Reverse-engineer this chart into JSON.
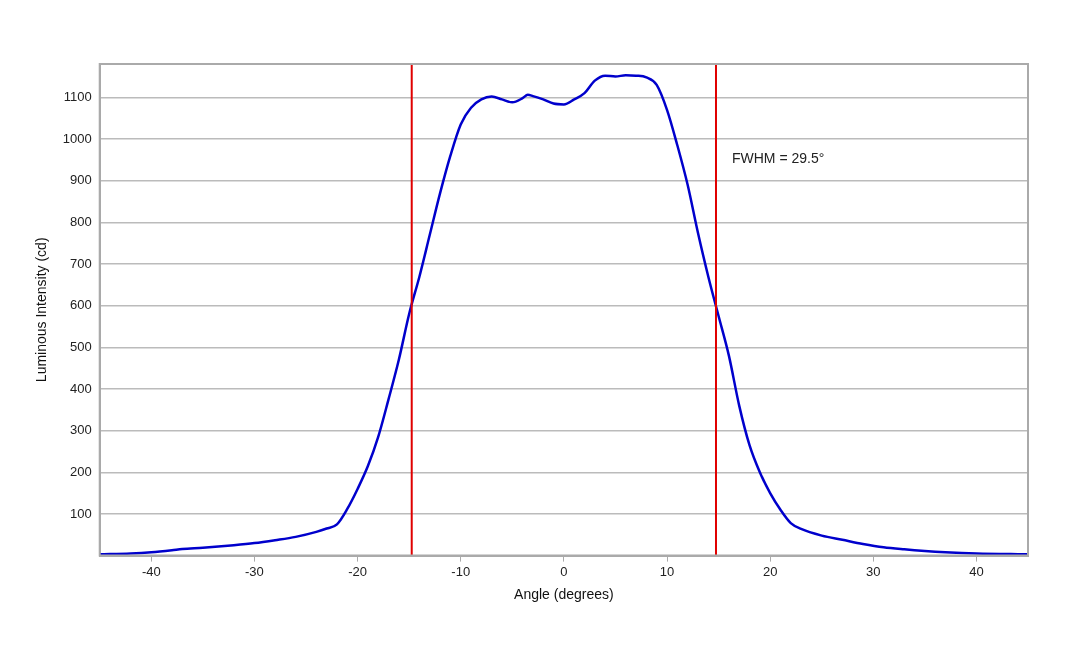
{
  "chart_data": {
    "type": "line",
    "xlabel": "Angle (degrees)",
    "ylabel": "Luminous Intensity (cd)",
    "xlim": [
      -45,
      45
    ],
    "xticks": [
      -40,
      -30,
      -20,
      -10,
      0,
      10,
      20,
      30,
      40
    ],
    "ylim": [
      0,
      1180
    ],
    "yticks": [
      100,
      200,
      300,
      400,
      500,
      600,
      700,
      800,
      900,
      1000,
      1100
    ],
    "grid": "y",
    "legend": false,
    "marker": "none",
    "line_style": "solid",
    "series": [
      {
        "color": "#0000cc",
        "x": [
          -45,
          -42,
          -40,
          -38,
          -37,
          -35,
          -32,
          -30,
          -28,
          -26,
          -24,
          -23,
          -22,
          -21,
          -20,
          -19,
          -18,
          -17,
          -16,
          -15,
          -14,
          -13,
          -12,
          -11,
          -10,
          -9,
          -8,
          -7,
          -6,
          -5,
          -4,
          -3.5,
          -3,
          -2,
          -1,
          0,
          1,
          2,
          3,
          4,
          5,
          6,
          7,
          8,
          9,
          10,
          11,
          12,
          13,
          14,
          15,
          16,
          17,
          18,
          19,
          20,
          21,
          22,
          23,
          25,
          27,
          29,
          31,
          33,
          35,
          37,
          40,
          45
        ],
        "values": [
          3,
          5,
          8,
          13,
          16,
          19,
          25,
          30,
          37,
          45,
          57,
          65,
          75,
          112,
          160,
          215,
          285,
          375,
          470,
          580,
          670,
          770,
          870,
          960,
          1035,
          1075,
          1095,
          1102,
          1095,
          1088,
          1098,
          1106,
          1103,
          1095,
          1085,
          1083,
          1095,
          1110,
          1140,
          1152,
          1150,
          1153,
          1152,
          1148,
          1130,
          1070,
          985,
          890,
          775,
          670,
          575,
          480,
          360,
          265,
          200,
          150,
          110,
          78,
          64,
          48,
          38,
          28,
          20,
          15,
          11,
          8,
          5,
          3
        ]
      }
    ],
    "ref_lines": [
      {
        "axis": "x",
        "value": -14.75,
        "color": "#e00000"
      },
      {
        "axis": "x",
        "value": 14.75,
        "color": "#e00000"
      }
    ],
    "annotations": [
      "FWHM = 29.5°"
    ]
  }
}
